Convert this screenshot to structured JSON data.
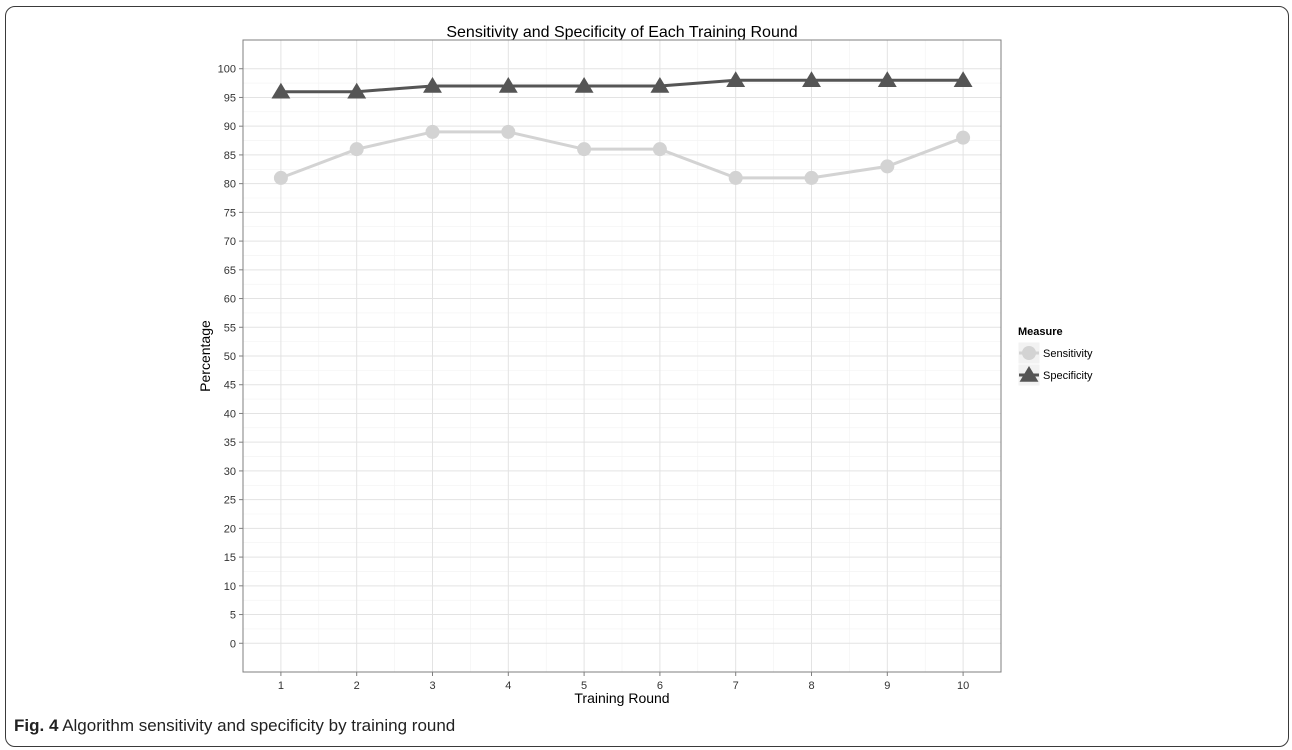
{
  "caption": {
    "label": "Fig. 4",
    "text": " Algorithm sensitivity and specificity by training round"
  },
  "chart_data": {
    "type": "line",
    "title": "Sensitivity and Specificity of Each Training Round",
    "xlabel": "Training Round",
    "ylabel": "Percentage",
    "x": [
      1,
      2,
      3,
      4,
      5,
      6,
      7,
      8,
      9,
      10
    ],
    "ylim": [
      -5,
      105
    ],
    "yticks": [
      0,
      5,
      10,
      15,
      20,
      25,
      30,
      35,
      40,
      45,
      50,
      55,
      60,
      65,
      70,
      75,
      80,
      85,
      90,
      95,
      100
    ],
    "grid": true,
    "legend": {
      "title": "Measure",
      "position": "right"
    },
    "series": [
      {
        "name": "Sensitivity",
        "marker": "circle",
        "color": "#d3d3d3",
        "values": [
          81,
          86,
          89,
          89,
          86,
          86,
          81,
          81,
          83,
          88
        ]
      },
      {
        "name": "Specificity",
        "marker": "triangle",
        "color": "#555555",
        "values": [
          96,
          96,
          97,
          97,
          97,
          97,
          98,
          98,
          98,
          98
        ]
      }
    ]
  }
}
